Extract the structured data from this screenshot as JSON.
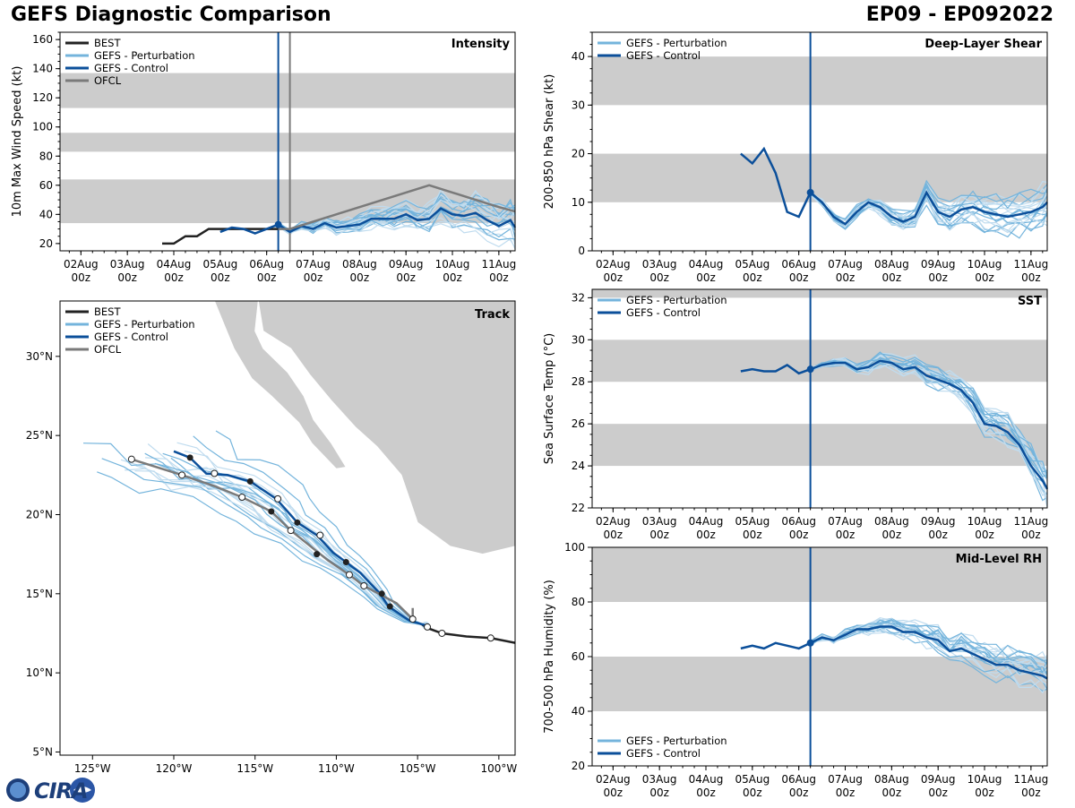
{
  "header": {
    "left_title": "GEFS Diagnostic Comparison",
    "right_title": "EP09 - EP092022"
  },
  "logo": {
    "text": "CIRA"
  },
  "colors": {
    "best": "#222222",
    "pert": "#74b4dc",
    "pert_light": "#c0dcef",
    "control": "#0b4f9a",
    "ofcl": "#7a7a7a",
    "band": "#cccccc"
  },
  "time_axis": {
    "ticks": [
      0,
      1,
      2,
      3,
      4,
      5,
      6,
      7,
      8,
      9
    ],
    "labels": [
      [
        "02Aug",
        "00z"
      ],
      [
        "03Aug",
        "00z"
      ],
      [
        "04Aug",
        "00z"
      ],
      [
        "05Aug",
        "00z"
      ],
      [
        "06Aug",
        "00z"
      ],
      [
        "07Aug",
        "00z"
      ],
      [
        "08Aug",
        "00z"
      ],
      [
        "09Aug",
        "00z"
      ],
      [
        "10Aug",
        "00z"
      ],
      [
        "11Aug",
        "00z"
      ]
    ],
    "range": [
      -0.45,
      9.35
    ],
    "init_time": 4.25
  },
  "chart_data": [
    {
      "id": "intensity",
      "type": "line",
      "panel_title": "Intensity",
      "ylabel": "10m Max Wind Speed (kt)",
      "ylim": [
        15,
        165
      ],
      "yticks": [
        20,
        40,
        60,
        80,
        100,
        120,
        140,
        160
      ],
      "bands": [
        [
          34,
          64
        ],
        [
          83,
          96
        ],
        [
          113,
          137
        ]
      ],
      "ofcl_time": 4.5,
      "legend": [
        "BEST",
        "GEFS - Perturbation",
        "GEFS - Control",
        "OFCL"
      ],
      "series": [
        {
          "name": "BEST",
          "t": [
            1.75,
            2.0,
            2.25,
            2.5,
            2.75,
            3.0,
            3.25,
            3.5,
            3.75,
            4.0,
            4.25
          ],
          "v": [
            20,
            20,
            25,
            25,
            30,
            30,
            30,
            30,
            30,
            30,
            30
          ]
        },
        {
          "name": "GEFS - Control",
          "t": [
            3.0,
            3.25,
            3.5,
            3.75,
            4.0,
            4.25,
            4.5,
            4.75,
            5.0,
            5.25,
            5.5,
            5.75,
            6.0,
            6.25,
            6.5,
            6.75,
            7.0,
            7.25,
            7.5,
            7.75,
            8.0,
            8.25,
            8.5,
            8.75,
            9.0,
            9.25,
            9.35
          ],
          "v": [
            28,
            31,
            30,
            27,
            30,
            33,
            28,
            32,
            30,
            34,
            31,
            32,
            33,
            37,
            37,
            37,
            40,
            36,
            37,
            44,
            40,
            39,
            41,
            36,
            32,
            36,
            31
          ]
        },
        {
          "name": "OFCL",
          "t": [
            4.25,
            4.5,
            5.0,
            5.5,
            6.0,
            6.5,
            7.0,
            7.5,
            8.0,
            8.5,
            9.0,
            9.35
          ],
          "v": [
            30,
            30,
            35,
            40,
            45,
            50,
            55,
            60,
            55,
            50,
            45,
            42
          ]
        }
      ]
    },
    {
      "id": "shear",
      "type": "line",
      "panel_title": "Deep-Layer Shear",
      "ylabel": "200-850 hPa Shear (kt)",
      "ylim": [
        0,
        45
      ],
      "yticks": [
        0,
        10,
        20,
        30,
        40
      ],
      "bands": [
        [
          10,
          20
        ],
        [
          30,
          40
        ]
      ],
      "legend": [
        "GEFS - Perturbation",
        "GEFS - Control"
      ],
      "series": [
        {
          "name": "GEFS - Control",
          "t": [
            2.75,
            3.0,
            3.25,
            3.5,
            3.75,
            4.0,
            4.25,
            4.5,
            4.75,
            5.0,
            5.25,
            5.5,
            5.75,
            6.0,
            6.25,
            6.5,
            6.75,
            7.0,
            7.25,
            7.5,
            7.75,
            8.0,
            8.25,
            8.5,
            8.75,
            9.0,
            9.25,
            9.35
          ],
          "v": [
            20,
            18,
            21,
            16,
            8,
            7,
            12,
            10,
            7,
            5.5,
            8,
            10,
            9,
            7,
            6,
            7,
            12,
            8,
            7,
            8.5,
            9,
            8,
            7.5,
            7,
            7.5,
            8,
            9,
            10
          ]
        }
      ]
    },
    {
      "id": "sst",
      "type": "line",
      "panel_title": "SST",
      "ylabel": "Sea Surface Temp (°C)",
      "ylim": [
        22,
        32.4
      ],
      "yticks": [
        22,
        24,
        26,
        28,
        30,
        32
      ],
      "bands": [
        [
          24,
          26
        ],
        [
          28,
          30
        ],
        [
          32,
          33
        ]
      ],
      "legend": [
        "GEFS - Perturbation",
        "GEFS - Control"
      ],
      "series": [
        {
          "name": "GEFS - Control",
          "t": [
            2.75,
            3.0,
            3.25,
            3.5,
            3.75,
            4.0,
            4.25,
            4.5,
            4.75,
            5.0,
            5.25,
            5.5,
            5.75,
            6.0,
            6.25,
            6.5,
            6.75,
            7.0,
            7.25,
            7.5,
            7.75,
            8.0,
            8.25,
            8.5,
            8.75,
            9.0,
            9.25,
            9.35
          ],
          "v": [
            28.5,
            28.6,
            28.5,
            28.5,
            28.8,
            28.4,
            28.6,
            28.8,
            28.9,
            28.9,
            28.6,
            28.7,
            29.0,
            28.9,
            28.6,
            28.7,
            28.3,
            28.1,
            27.9,
            27.6,
            27.0,
            26.0,
            25.9,
            25.6,
            25.0,
            24.0,
            23.3,
            22.9
          ]
        }
      ]
    },
    {
      "id": "rh",
      "type": "line",
      "panel_title": "Mid-Level RH",
      "ylabel": "700-500 hPa Humidity (%)",
      "ylim": [
        20,
        100
      ],
      "yticks": [
        20,
        40,
        60,
        80,
        100
      ],
      "bands": [
        [
          40,
          60
        ],
        [
          80,
          100
        ]
      ],
      "legend": [
        "GEFS - Perturbation",
        "GEFS - Control"
      ],
      "series": [
        {
          "name": "GEFS - Control",
          "t": [
            2.75,
            3.0,
            3.25,
            3.5,
            3.75,
            4.0,
            4.25,
            4.5,
            4.75,
            5.0,
            5.25,
            5.5,
            5.75,
            6.0,
            6.25,
            6.5,
            6.75,
            7.0,
            7.25,
            7.5,
            7.75,
            8.0,
            8.25,
            8.5,
            8.75,
            9.0,
            9.25,
            9.35
          ],
          "v": [
            63,
            64,
            63,
            65,
            64,
            63,
            65,
            67,
            66,
            68,
            70,
            70,
            71,
            71,
            69,
            69,
            67,
            66,
            62,
            63,
            61,
            59,
            57,
            57,
            55,
            54,
            53,
            52
          ]
        }
      ]
    },
    {
      "id": "track",
      "type": "line",
      "panel_title": "Track",
      "xlim": [
        -127,
        -99
      ],
      "ylim": [
        4.8,
        33.5
      ],
      "xticks": [
        -125,
        -120,
        -115,
        -110,
        -105,
        -100
      ],
      "xticklabels": [
        "125°W",
        "120°W",
        "115°W",
        "110°W",
        "105°W",
        "100°W"
      ],
      "yticks": [
        5,
        10,
        15,
        20,
        25,
        30
      ],
      "yticklabels": [
        "5°N",
        "10°N",
        "15°N",
        "20°N",
        "25°N",
        "30°N"
      ],
      "legend": [
        "BEST",
        "GEFS - Perturbation",
        "GEFS - Control",
        "OFCL"
      ],
      "series": [
        {
          "name": "BEST",
          "lon": [
            -99,
            -100.5,
            -102,
            -103.5,
            -104.3,
            -104.8
          ],
          "lat": [
            11.9,
            12.2,
            12.3,
            12.5,
            12.8,
            13.1
          ]
        },
        {
          "name": "GEFS - Control",
          "lon": [
            -104.5,
            -105.5,
            -106.8,
            -107.3,
            -108.5,
            -109.4,
            -110.2,
            -111.2,
            -112.4,
            -113.0,
            -113.7,
            -115.3,
            -116.7,
            -118.0,
            -119.0,
            -120.0
          ],
          "lat": [
            13.0,
            13.3,
            14.2,
            15.0,
            16.3,
            17.0,
            17.6,
            18.7,
            19.5,
            20.2,
            21.0,
            22.1,
            22.5,
            22.6,
            23.6,
            24.0
          ]
        },
        {
          "name": "OFCL",
          "lon": [
            -105.3,
            -105.3,
            -106.3,
            -108.3,
            -109.2,
            -110.5,
            -112.8,
            -114.0,
            -115.8,
            -117.5,
            -119.5,
            -122.6
          ],
          "lat": [
            14.1,
            13.4,
            14.4,
            15.5,
            16.2,
            17.1,
            19.0,
            20.2,
            21.1,
            21.8,
            22.5,
            23.5
          ]
        }
      ],
      "best_points": {
        "lon": [
          -100.5,
          -103.5,
          -104.4
        ],
        "lat": [
          12.2,
          12.5,
          12.9
        ]
      },
      "control_points": {
        "lon": [
          -106.7,
          -107.2,
          -109.4,
          -111.2,
          -112.4,
          -114.0,
          -115.3,
          -119.0
        ],
        "lat": [
          14.2,
          15.0,
          17.0,
          17.5,
          19.5,
          20.2,
          22.1,
          23.6
        ]
      },
      "ofcl_points": {
        "lon": [
          -105.3,
          -108.3,
          -109.2,
          -111.0,
          -112.8,
          -113.6,
          -115.8,
          -117.5,
          -119.5,
          -122.6
        ],
        "lat": [
          13.4,
          15.5,
          16.2,
          18.7,
          19.0,
          21.0,
          21.1,
          22.6,
          22.5,
          23.5
        ]
      }
    }
  ]
}
